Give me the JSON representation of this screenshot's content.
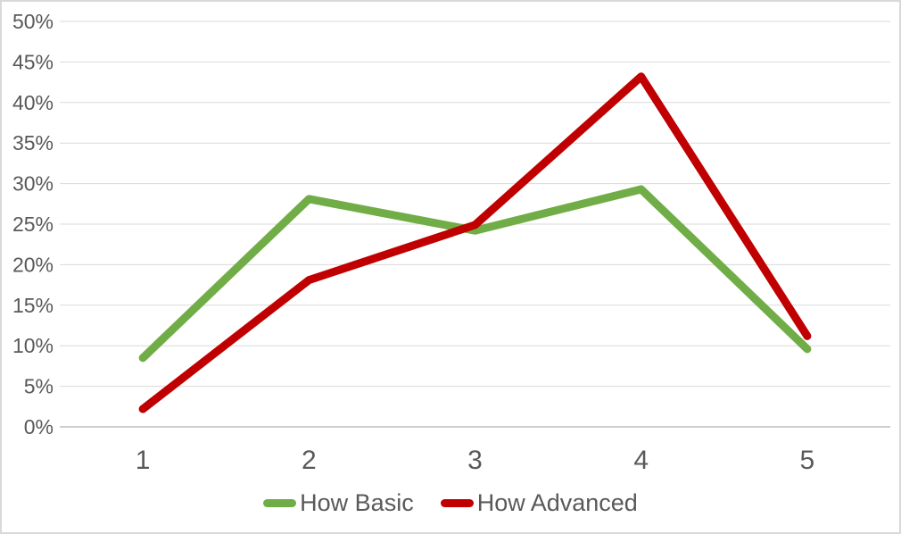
{
  "chart_data": {
    "type": "line",
    "title": "",
    "xlabel": "",
    "ylabel": "",
    "categories": [
      "1",
      "2",
      "3",
      "4",
      "5"
    ],
    "series": [
      {
        "name": "How Basic",
        "color": "#70AD47",
        "values": [
          8.5,
          28.1,
          24.2,
          29.3,
          9.6
        ]
      },
      {
        "name": "How Advanced",
        "color": "#C00000",
        "values": [
          2.2,
          18.1,
          24.9,
          43.2,
          11.2
        ]
      }
    ],
    "ylim": [
      0,
      50
    ],
    "ytick_step": 5,
    "ytick_suffix": "%",
    "grid": "horizontal",
    "legend_position": "bottom",
    "colors": {
      "text": "#595959",
      "grid": "#d9d9d9",
      "axis": "#bfbfbf",
      "background": "#ffffff",
      "border": "#d9d9d9"
    }
  }
}
